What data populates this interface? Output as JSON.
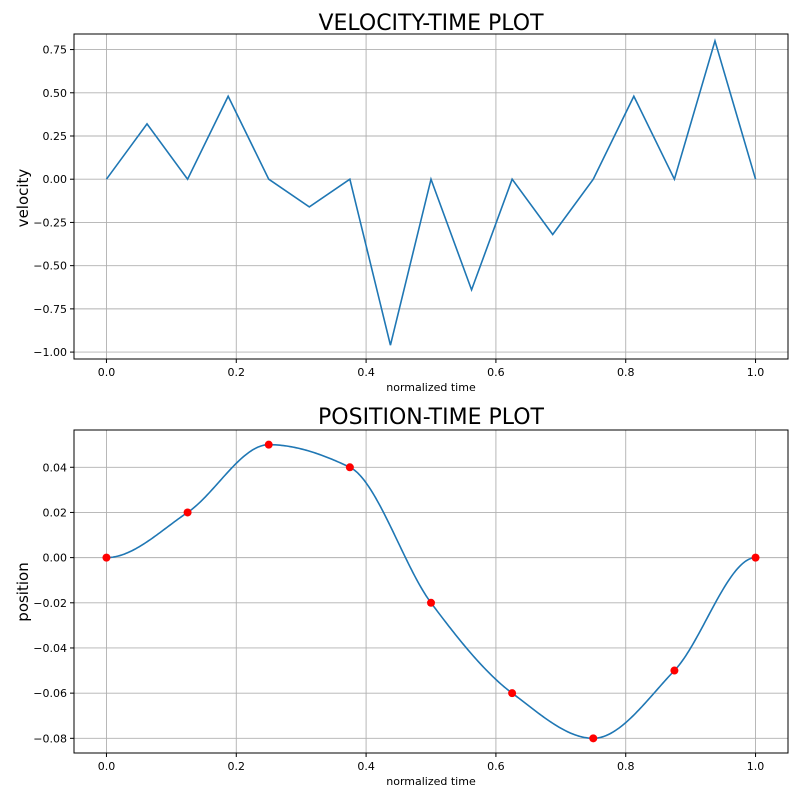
{
  "chart_data": [
    {
      "type": "line",
      "title": "VELOCITY-TIME PLOT",
      "xlabel": "normalized time",
      "ylabel": "velocity",
      "xlim": [
        -0.05,
        1.05
      ],
      "ylim": [
        -1.04,
        0.84
      ],
      "grid": true,
      "xticks": [
        0.0,
        0.2,
        0.4,
        0.6,
        0.8,
        1.0
      ],
      "xtick_labels": [
        "0.0",
        "0.2",
        "0.4",
        "0.6",
        "0.8",
        "1.0"
      ],
      "yticks": [
        0.75,
        0.5,
        0.25,
        0.0,
        -0.25,
        -0.5,
        -0.75,
        -1.0
      ],
      "ytick_labels": [
        "0.75",
        "0.50",
        "0.25",
        "0.00",
        "−0.25",
        "−0.50",
        "−0.75",
        "−1.00"
      ],
      "color": "#1f77b4",
      "x": [
        0.0,
        0.0625,
        0.125,
        0.1875,
        0.25,
        0.3125,
        0.375,
        0.4375,
        0.5,
        0.5625,
        0.625,
        0.6875,
        0.75,
        0.8125,
        0.875,
        0.9375,
        1.0
      ],
      "y": [
        0.0,
        0.32,
        0.0,
        0.48,
        0.0,
        -0.16,
        0.0,
        -0.96,
        0.0,
        -0.64,
        0.0,
        -0.32,
        0.0,
        0.48,
        0.0,
        0.8,
        0.0
      ]
    },
    {
      "type": "line",
      "title": "POSITION-TIME PLOT",
      "xlabel": "normalized time",
      "ylabel": "position",
      "xlim": [
        -0.05,
        1.05
      ],
      "ylim": [
        -0.0865,
        0.0565
      ],
      "grid": true,
      "xticks": [
        0.0,
        0.2,
        0.4,
        0.6,
        0.8,
        1.0
      ],
      "xtick_labels": [
        "0.0",
        "0.2",
        "0.4",
        "0.6",
        "0.8",
        "1.0"
      ],
      "yticks": [
        0.04,
        0.02,
        0.0,
        -0.02,
        -0.04,
        -0.06,
        -0.08
      ],
      "ytick_labels": [
        "0.04",
        "0.02",
        "0.00",
        "−0.02",
        "−0.04",
        "−0.06",
        "−0.08"
      ],
      "color": "#1f77b4",
      "marker_color": "#ff0000",
      "x": [
        0.0,
        0.125,
        0.25,
        0.375,
        0.5,
        0.625,
        0.75,
        0.875,
        1.0
      ],
      "y": [
        0.0,
        0.02,
        0.05,
        0.04,
        -0.02,
        -0.06,
        -0.08,
        -0.05,
        0.0
      ]
    }
  ]
}
